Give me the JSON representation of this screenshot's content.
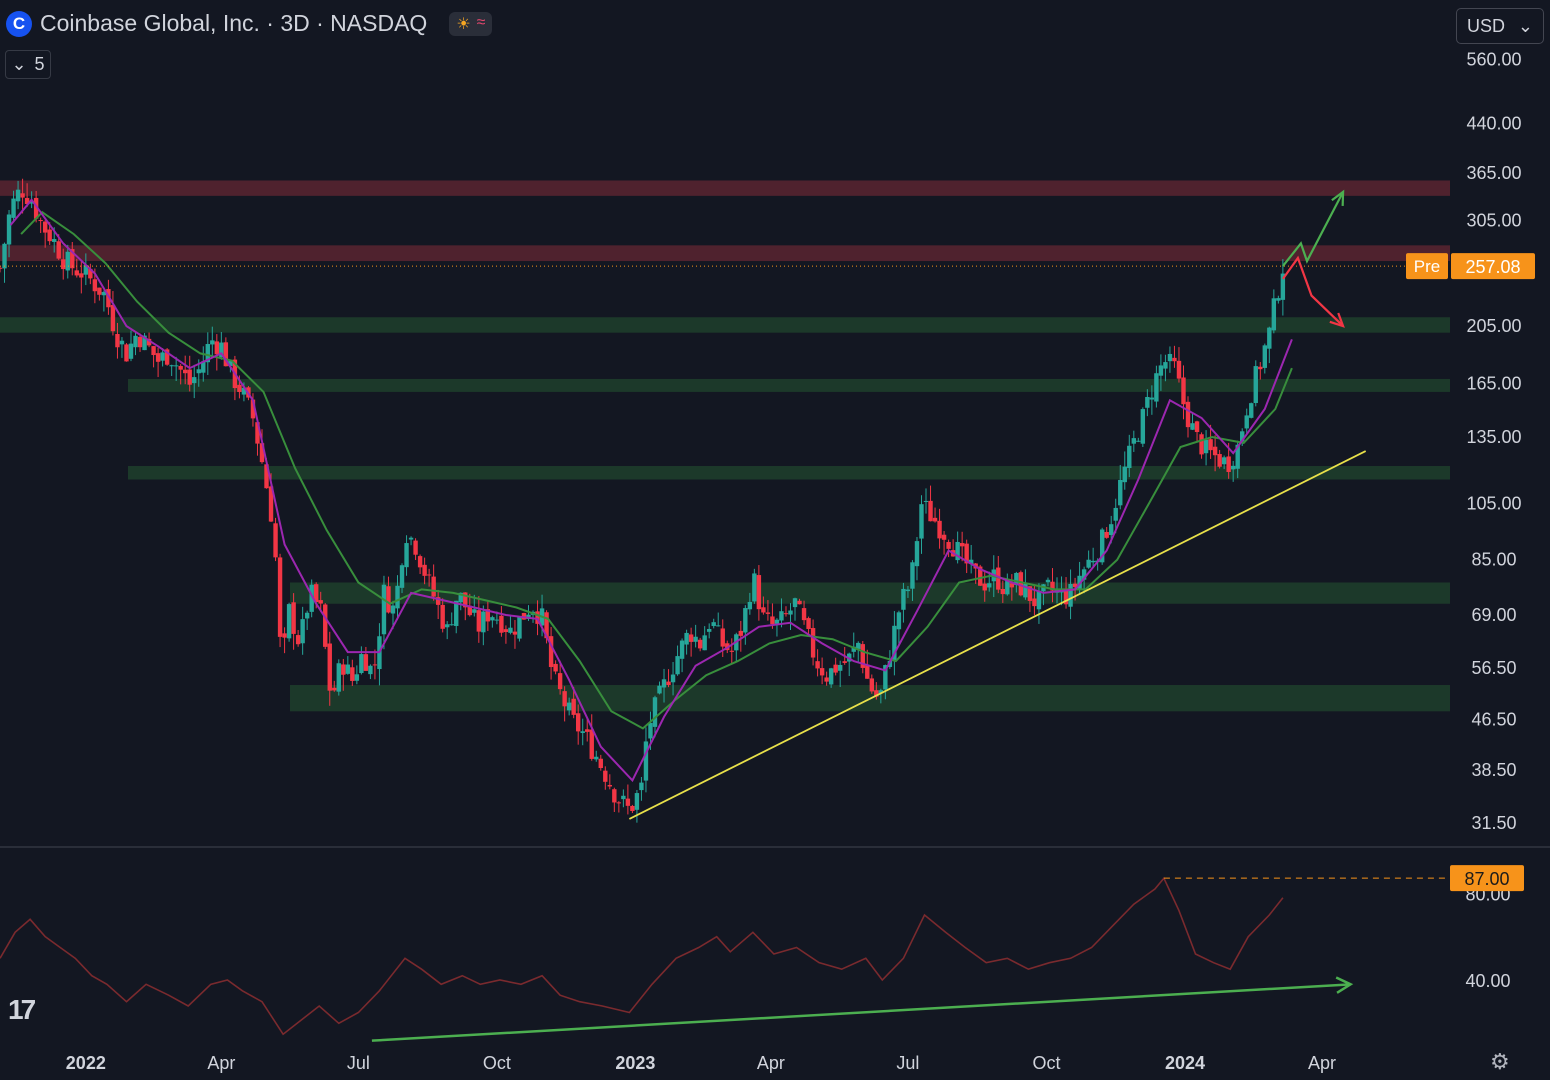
{
  "header": {
    "logo_letter": "C",
    "title": "Coinbase Global, Inc. · 3D · NASDAQ",
    "session_icon": "sun-icon",
    "session_icon_glyph": "☀",
    "data_icon": "wave-icon",
    "data_icon_glyph": "≈"
  },
  "indicator_toggle": {
    "icon": "chevron-down-icon",
    "glyph": "⌄",
    "count": "5"
  },
  "currency": {
    "value": "USD",
    "icon": "chevron-down-icon",
    "glyph": "⌄"
  },
  "branding": {
    "logo_text": "17"
  },
  "settings_icon": "gear-icon",
  "settings_glyph": "⚙",
  "colors": {
    "background": "#131722",
    "up": "#26a69a",
    "down": "#f23645",
    "ema_fast": "#9c27b0",
    "ema_slow": "#388e3c",
    "resistance_zone": "#5a2430",
    "support_zone": "#1e3d2b",
    "trendline": "#e8e04a",
    "rsi": "#7a2a2e",
    "arrow_up": "#4caf50",
    "arrow_down": "#f23645",
    "price_badge": "#f7931a"
  },
  "chart_data": {
    "type": "candlestick",
    "symbol": "Coinbase Global, Inc.",
    "interval": "3D",
    "exchange": "NASDAQ",
    "y_scale": "log",
    "ylim": [
      29,
      650
    ],
    "x_range": [
      "2021-11-05",
      "2024-06-25"
    ],
    "y_ticks": [
      "560.00",
      "440.00",
      "365.00",
      "305.00",
      "205.00",
      "165.00",
      "135.00",
      "105.00",
      "85.00",
      "69.00",
      "56.50",
      "46.50",
      "38.50",
      "31.50"
    ],
    "x_ticks": [
      {
        "label": "2022",
        "date": "2022-01-01",
        "bold": true
      },
      {
        "label": "Apr",
        "date": "2022-04-01",
        "bold": false
      },
      {
        "label": "Jul",
        "date": "2022-07-01",
        "bold": false
      },
      {
        "label": "Oct",
        "date": "2022-10-01",
        "bold": false
      },
      {
        "label": "2023",
        "date": "2023-01-01",
        "bold": true
      },
      {
        "label": "Apr",
        "date": "2023-04-01",
        "bold": false
      },
      {
        "label": "Jul",
        "date": "2023-07-01",
        "bold": false
      },
      {
        "label": "Oct",
        "date": "2023-10-01",
        "bold": false
      },
      {
        "label": "2024",
        "date": "2024-01-01",
        "bold": true
      },
      {
        "label": "Apr",
        "date": "2024-04-01",
        "bold": false
      }
    ],
    "close_path": [
      [
        "2021-11-05",
        255
      ],
      [
        "2021-11-12",
        320
      ],
      [
        "2021-11-19",
        345
      ],
      [
        "2021-11-26",
        330
      ],
      [
        "2021-12-03",
        300
      ],
      [
        "2021-12-10",
        285
      ],
      [
        "2021-12-17",
        265
      ],
      [
        "2021-12-24",
        255
      ],
      [
        "2021-12-31",
        250
      ],
      [
        "2022-01-07",
        240
      ],
      [
        "2022-01-14",
        230
      ],
      [
        "2022-01-21",
        200
      ],
      [
        "2022-01-28",
        185
      ],
      [
        "2022-02-04",
        200
      ],
      [
        "2022-02-11",
        190
      ],
      [
        "2022-02-18",
        180
      ],
      [
        "2022-02-25",
        185
      ],
      [
        "2022-03-04",
        175
      ],
      [
        "2022-03-11",
        165
      ],
      [
        "2022-03-18",
        175
      ],
      [
        "2022-03-25",
        195
      ],
      [
        "2022-04-01",
        190
      ],
      [
        "2022-04-08",
        170
      ],
      [
        "2022-04-15",
        160
      ],
      [
        "2022-04-22",
        145
      ],
      [
        "2022-04-29",
        120
      ],
      [
        "2022-05-06",
        95
      ],
      [
        "2022-05-11",
        56
      ],
      [
        "2022-05-16",
        70
      ],
      [
        "2022-05-23",
        62
      ],
      [
        "2022-05-30",
        75
      ],
      [
        "2022-06-06",
        70
      ],
      [
        "2022-06-13",
        50
      ],
      [
        "2022-06-20",
        58
      ],
      [
        "2022-06-27",
        54
      ],
      [
        "2022-07-04",
        60
      ],
      [
        "2022-07-11",
        55
      ],
      [
        "2022-07-18",
        75
      ],
      [
        "2022-07-25",
        70
      ],
      [
        "2022-08-01",
        95
      ],
      [
        "2022-08-08",
        90
      ],
      [
        "2022-08-15",
        80
      ],
      [
        "2022-08-22",
        72
      ],
      [
        "2022-08-29",
        65
      ],
      [
        "2022-09-05",
        75
      ],
      [
        "2022-09-12",
        70
      ],
      [
        "2022-09-19",
        66
      ],
      [
        "2022-09-26",
        70
      ],
      [
        "2022-10-03",
        68
      ],
      [
        "2022-10-10",
        65
      ],
      [
        "2022-10-17",
        68
      ],
      [
        "2022-10-24",
        72
      ],
      [
        "2022-10-31",
        68
      ],
      [
        "2022-11-07",
        55
      ],
      [
        "2022-11-14",
        50
      ],
      [
        "2022-11-21",
        46
      ],
      [
        "2022-11-28",
        44
      ],
      [
        "2022-12-05",
        41
      ],
      [
        "2022-12-12",
        38
      ],
      [
        "2022-12-19",
        35
      ],
      [
        "2022-12-28",
        33
      ],
      [
        "2023-01-05",
        36
      ],
      [
        "2023-01-09",
        45
      ],
      [
        "2023-01-16",
        50
      ],
      [
        "2023-01-23",
        55
      ],
      [
        "2023-01-30",
        60
      ],
      [
        "2023-02-06",
        65
      ],
      [
        "2023-02-13",
        62
      ],
      [
        "2023-02-20",
        68
      ],
      [
        "2023-02-27",
        62
      ],
      [
        "2023-03-06",
        60
      ],
      [
        "2023-03-13",
        66
      ],
      [
        "2023-03-20",
        80
      ],
      [
        "2023-03-27",
        68
      ],
      [
        "2023-04-03",
        66
      ],
      [
        "2023-04-10",
        68
      ],
      [
        "2023-04-17",
        72
      ],
      [
        "2023-04-24",
        65
      ],
      [
        "2023-05-01",
        58
      ],
      [
        "2023-05-08",
        55
      ],
      [
        "2023-05-15",
        57
      ],
      [
        "2023-05-22",
        58
      ],
      [
        "2023-05-29",
        62
      ],
      [
        "2023-06-05",
        53
      ],
      [
        "2023-06-12",
        50
      ],
      [
        "2023-06-19",
        60
      ],
      [
        "2023-06-26",
        72
      ],
      [
        "2023-07-03",
        78
      ],
      [
        "2023-07-10",
        105
      ],
      [
        "2023-07-17",
        100
      ],
      [
        "2023-07-24",
        95
      ],
      [
        "2023-07-31",
        90
      ],
      [
        "2023-08-07",
        85
      ],
      [
        "2023-08-14",
        80
      ],
      [
        "2023-08-21",
        78
      ],
      [
        "2023-08-28",
        80
      ],
      [
        "2023-09-04",
        76
      ],
      [
        "2023-09-11",
        78
      ],
      [
        "2023-09-18",
        75
      ],
      [
        "2023-09-25",
        72
      ],
      [
        "2023-10-02",
        76
      ],
      [
        "2023-10-09",
        75
      ],
      [
        "2023-10-16",
        74
      ],
      [
        "2023-10-23",
        80
      ],
      [
        "2023-10-30",
        85
      ],
      [
        "2023-11-06",
        90
      ],
      [
        "2023-11-13",
        100
      ],
      [
        "2023-11-20",
        115
      ],
      [
        "2023-11-27",
        130
      ],
      [
        "2023-12-04",
        145
      ],
      [
        "2023-12-11",
        165
      ],
      [
        "2023-12-18",
        180
      ],
      [
        "2023-12-25",
        175
      ],
      [
        "2024-01-01",
        150
      ],
      [
        "2024-01-08",
        135
      ],
      [
        "2024-01-15",
        128
      ],
      [
        "2024-01-22",
        125
      ],
      [
        "2024-01-29",
        122
      ],
      [
        "2024-02-05",
        130
      ],
      [
        "2024-02-12",
        155
      ],
      [
        "2024-02-19",
        175
      ],
      [
        "2024-02-26",
        200
      ],
      [
        "2024-03-01",
        225
      ],
      [
        "2024-03-06",
        257.08
      ]
    ],
    "ema_fast": [
      [
        "2021-11-12",
        300
      ],
      [
        "2021-11-26",
        330
      ],
      [
        "2021-12-17",
        280
      ],
      [
        "2022-01-07",
        250
      ],
      [
        "2022-01-28",
        205
      ],
      [
        "2022-02-18",
        190
      ],
      [
        "2022-03-11",
        175
      ],
      [
        "2022-04-01",
        185
      ],
      [
        "2022-04-22",
        155
      ],
      [
        "2022-05-13",
        90
      ],
      [
        "2022-06-03",
        72
      ],
      [
        "2022-06-24",
        60
      ],
      [
        "2022-07-15",
        60
      ],
      [
        "2022-08-05",
        75
      ],
      [
        "2022-08-26",
        73
      ],
      [
        "2022-09-16",
        71
      ],
      [
        "2022-10-07",
        69
      ],
      [
        "2022-10-28",
        68
      ],
      [
        "2022-11-18",
        54
      ],
      [
        "2022-12-09",
        42
      ],
      [
        "2022-12-30",
        37
      ],
      [
        "2023-01-20",
        47
      ],
      [
        "2023-02-10",
        57
      ],
      [
        "2023-03-03",
        61
      ],
      [
        "2023-03-24",
        66
      ],
      [
        "2023-04-14",
        67
      ],
      [
        "2023-05-05",
        62
      ],
      [
        "2023-05-26",
        58
      ],
      [
        "2023-06-16",
        56
      ],
      [
        "2023-07-07",
        70
      ],
      [
        "2023-07-28",
        88
      ],
      [
        "2023-08-18",
        82
      ],
      [
        "2023-09-08",
        78
      ],
      [
        "2023-09-29",
        75
      ],
      [
        "2023-10-20",
        76
      ],
      [
        "2023-11-10",
        88
      ],
      [
        "2023-12-01",
        115
      ],
      [
        "2023-12-22",
        155
      ],
      [
        "2024-01-12",
        145
      ],
      [
        "2024-02-02",
        127
      ],
      [
        "2024-02-23",
        150
      ],
      [
        "2024-03-12",
        195
      ]
    ],
    "ema_slow": [
      [
        "2021-11-19",
        290
      ],
      [
        "2021-12-03",
        315
      ],
      [
        "2021-12-24",
        290
      ],
      [
        "2022-01-14",
        260
      ],
      [
        "2022-02-04",
        225
      ],
      [
        "2022-02-25",
        200
      ],
      [
        "2022-03-18",
        185
      ],
      [
        "2022-04-08",
        180
      ],
      [
        "2022-04-29",
        160
      ],
      [
        "2022-05-20",
        120
      ],
      [
        "2022-06-10",
        95
      ],
      [
        "2022-07-01",
        78
      ],
      [
        "2022-07-22",
        72
      ],
      [
        "2022-08-12",
        76
      ],
      [
        "2022-09-02",
        75
      ],
      [
        "2022-09-23",
        73
      ],
      [
        "2022-10-14",
        71
      ],
      [
        "2022-11-04",
        68
      ],
      [
        "2022-11-25",
        58
      ],
      [
        "2022-12-16",
        48
      ],
      [
        "2023-01-06",
        45
      ],
      [
        "2023-01-27",
        50
      ],
      [
        "2023-02-17",
        55
      ],
      [
        "2023-03-10",
        58
      ],
      [
        "2023-03-31",
        62
      ],
      [
        "2023-04-21",
        64
      ],
      [
        "2023-05-12",
        63
      ],
      [
        "2023-06-02",
        60
      ],
      [
        "2023-06-23",
        58
      ],
      [
        "2023-07-14",
        66
      ],
      [
        "2023-08-04",
        78
      ],
      [
        "2023-08-25",
        80
      ],
      [
        "2023-09-15",
        78
      ],
      [
        "2023-10-06",
        76
      ],
      [
        "2023-10-27",
        76
      ],
      [
        "2023-11-17",
        85
      ],
      [
        "2023-12-08",
        105
      ],
      [
        "2023-12-29",
        130
      ],
      [
        "2024-01-19",
        135
      ],
      [
        "2024-02-09",
        132
      ],
      [
        "2024-03-01",
        150
      ],
      [
        "2024-03-12",
        175
      ]
    ],
    "resistance_zones": [
      [
        335,
        355
      ],
      [
        262,
        278
      ]
    ],
    "support_zones": [
      [
        200,
        212
      ],
      [
        160,
        168
      ],
      [
        115,
        121
      ],
      [
        72,
        78
      ],
      [
        48,
        53
      ]
    ],
    "trendline": [
      [
        "2022-12-28",
        32
      ],
      [
        "2024-04-30",
        128
      ]
    ],
    "price_label": {
      "tag": "Pre",
      "value": "257.08"
    },
    "projection_up": [
      [
        "2024-03-06",
        257.08
      ],
      [
        "2024-03-18",
        280
      ],
      [
        "2024-03-22",
        262
      ],
      [
        "2024-04-15",
        340
      ]
    ],
    "projection_down": [
      [
        "2024-03-06",
        245
      ],
      [
        "2024-03-16",
        265
      ],
      [
        "2024-03-25",
        230
      ],
      [
        "2024-04-15",
        205
      ]
    ],
    "rsi": {
      "y_ticks": [
        "80.00",
        "40.00"
      ],
      "ylim": [
        10,
        100
      ],
      "level_label": "87.00",
      "level_value": 87,
      "level_from": "2023-12-18",
      "values": [
        [
          "2021-11-05",
          50
        ],
        [
          "2021-11-15",
          62
        ],
        [
          "2021-11-25",
          68
        ],
        [
          "2021-12-05",
          60
        ],
        [
          "2021-12-15",
          55
        ],
        [
          "2021-12-25",
          50
        ],
        [
          "2022-01-05",
          42
        ],
        [
          "2022-01-15",
          38
        ],
        [
          "2022-01-28",
          30
        ],
        [
          "2022-02-10",
          38
        ],
        [
          "2022-02-25",
          33
        ],
        [
          "2022-03-10",
          28
        ],
        [
          "2022-03-25",
          38
        ],
        [
          "2022-04-05",
          40
        ],
        [
          "2022-04-15",
          35
        ],
        [
          "2022-04-28",
          30
        ],
        [
          "2022-05-12",
          15
        ],
        [
          "2022-05-25",
          22
        ],
        [
          "2022-06-05",
          28
        ],
        [
          "2022-06-18",
          20
        ],
        [
          "2022-07-01",
          25
        ],
        [
          "2022-07-15",
          35
        ],
        [
          "2022-08-01",
          50
        ],
        [
          "2022-08-12",
          45
        ],
        [
          "2022-08-25",
          38
        ],
        [
          "2022-09-08",
          42
        ],
        [
          "2022-09-20",
          38
        ],
        [
          "2022-10-03",
          40
        ],
        [
          "2022-10-17",
          38
        ],
        [
          "2022-10-31",
          42
        ],
        [
          "2022-11-12",
          33
        ],
        [
          "2022-11-25",
          30
        ],
        [
          "2022-12-10",
          28
        ],
        [
          "2022-12-28",
          25
        ],
        [
          "2023-01-12",
          38
        ],
        [
          "2023-01-28",
          50
        ],
        [
          "2023-02-12",
          55
        ],
        [
          "2023-02-24",
          60
        ],
        [
          "2023-03-05",
          53
        ],
        [
          "2023-03-20",
          62
        ],
        [
          "2023-04-03",
          52
        ],
        [
          "2023-04-18",
          55
        ],
        [
          "2023-05-03",
          48
        ],
        [
          "2023-05-18",
          45
        ],
        [
          "2023-06-03",
          50
        ],
        [
          "2023-06-14",
          40
        ],
        [
          "2023-06-28",
          50
        ],
        [
          "2023-07-12",
          70
        ],
        [
          "2023-07-26",
          62
        ],
        [
          "2023-08-08",
          55
        ],
        [
          "2023-08-22",
          48
        ],
        [
          "2023-09-05",
          50
        ],
        [
          "2023-09-19",
          45
        ],
        [
          "2023-10-03",
          48
        ],
        [
          "2023-10-17",
          50
        ],
        [
          "2023-10-31",
          55
        ],
        [
          "2023-11-14",
          65
        ],
        [
          "2023-11-28",
          75
        ],
        [
          "2023-12-12",
          82
        ],
        [
          "2023-12-18",
          87
        ],
        [
          "2023-12-28",
          72
        ],
        [
          "2024-01-08",
          52
        ],
        [
          "2024-01-20",
          48
        ],
        [
          "2024-01-31",
          45
        ],
        [
          "2024-02-12",
          60
        ],
        [
          "2024-02-26",
          70
        ],
        [
          "2024-03-06",
          78
        ]
      ],
      "divergence_arrow": [
        [
          "2022-07-10",
          12
        ],
        [
          "2024-04-20",
          38
        ]
      ]
    }
  }
}
